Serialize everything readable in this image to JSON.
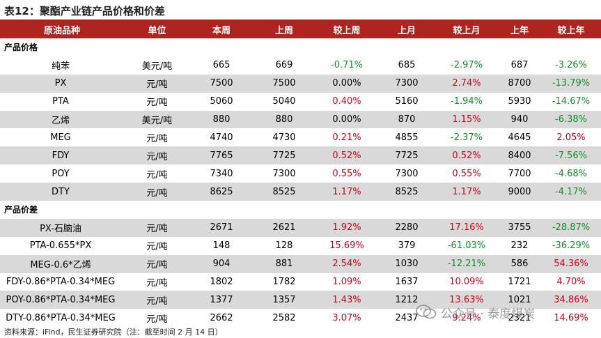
{
  "title": "表12：聚酯产业链产品价格和价差",
  "headers": [
    "原油品种",
    "单位",
    "本周",
    "上周",
    "较上周",
    "上月",
    "较上月",
    "上年",
    "较上年"
  ],
  "sections": [
    {
      "label": "产品价格",
      "rows": [
        {
          "name": "纯苯",
          "unit": "美元/吨",
          "this_week": "665",
          "last_week": "669",
          "wow": "-0.71%",
          "last_month": "685",
          "mom": "-2.97%",
          "last_year": "687",
          "yoy": "-3.26%",
          "shade": false
        },
        {
          "name": "PX",
          "unit": "元/吨",
          "this_week": "7500",
          "last_week": "7500",
          "wow": "0.00%",
          "last_month": "7300",
          "mom": "2.74%",
          "last_year": "8700",
          "yoy": "-13.79%",
          "shade": true
        },
        {
          "name": "PTA",
          "unit": "元/吨",
          "this_week": "5060",
          "last_week": "5040",
          "wow": "0.40%",
          "last_month": "5160",
          "mom": "-1.94%",
          "last_year": "5930",
          "yoy": "-14.67%",
          "shade": false
        },
        {
          "name": "乙烯",
          "unit": "美元/吨",
          "this_week": "880",
          "last_week": "880",
          "wow": "0.00%",
          "last_month": "870",
          "mom": "1.15%",
          "last_year": "940",
          "yoy": "-6.38%",
          "shade": true
        },
        {
          "name": "MEG",
          "unit": "元/吨",
          "this_week": "4740",
          "last_week": "4730",
          "wow": "0.21%",
          "last_month": "4855",
          "mom": "-2.37%",
          "last_year": "4645",
          "yoy": "2.05%",
          "shade": false
        },
        {
          "name": "FDY",
          "unit": "元/吨",
          "this_week": "7765",
          "last_week": "7725",
          "wow": "0.52%",
          "last_month": "7725",
          "mom": "0.52%",
          "last_year": "8400",
          "yoy": "-7.56%",
          "shade": true
        },
        {
          "name": "POY",
          "unit": "元/吨",
          "this_week": "7340",
          "last_week": "7300",
          "wow": "0.55%",
          "last_month": "7300",
          "mom": "0.55%",
          "last_year": "7700",
          "yoy": "-4.68%",
          "shade": false
        },
        {
          "name": "DTY",
          "unit": "元/吨",
          "this_week": "8625",
          "last_week": "8525",
          "wow": "1.17%",
          "last_month": "8525",
          "mom": "1.17%",
          "last_year": "9000",
          "yoy": "-4.17%",
          "shade": true
        }
      ]
    },
    {
      "label": "产品价差",
      "rows": [
        {
          "name": "PX-石脑油",
          "unit": "元/吨",
          "this_week": "2671",
          "last_week": "2621",
          "wow": "1.92%",
          "last_month": "2280",
          "mom": "17.16%",
          "last_year": "3755",
          "yoy": "-28.87%",
          "shade": true
        },
        {
          "name": "PTA-0.655*PX",
          "unit": "元/吨",
          "this_week": "148",
          "last_week": "128",
          "wow": "15.69%",
          "last_month": "379",
          "mom": "-61.03%",
          "last_year": "232",
          "yoy": "-36.29%",
          "shade": false
        },
        {
          "name": "MEG-0.6*乙烯",
          "unit": "元/吨",
          "this_week": "904",
          "last_week": "881",
          "wow": "2.54%",
          "last_month": "1030",
          "mom": "-12.21%",
          "last_year": "586",
          "yoy": "54.36%",
          "shade": true
        },
        {
          "name": "FDY-0.86*PTA-0.34*MEG",
          "unit": "元/吨",
          "this_week": "1802",
          "last_week": "1782",
          "wow": "1.09%",
          "last_month": "1637",
          "mom": "10.09%",
          "last_year": "1721",
          "yoy": "4.70%",
          "shade": false
        },
        {
          "name": "POY-0.86*PTA-0.34*MEG",
          "unit": "元/吨",
          "this_week": "1377",
          "last_week": "1357",
          "wow": "1.43%",
          "last_month": "1212",
          "mom": "13.63%",
          "last_year": "1021",
          "yoy": "34.86%",
          "shade": true
        },
        {
          "name": "DTY-0.86*PTA-0.34*MEG",
          "unit": "元/吨",
          "this_week": "2662",
          "last_week": "2582",
          "wow": "3.07%",
          "last_month": "2437",
          "mom": "9.24%",
          "last_year": "2321",
          "yoy": "14.69%",
          "shade": false
        }
      ]
    }
  ],
  "footer": "资料来源：iFind，民生证券研究院（注：截至时间 2 月 14 日）",
  "watermark": "公众号 · 泰度煤炭",
  "colors": {
    "header_bg": "#b0241f",
    "positive": "#d0021b",
    "negative": "#1a8a2e",
    "shade": "#d9d9d9"
  }
}
